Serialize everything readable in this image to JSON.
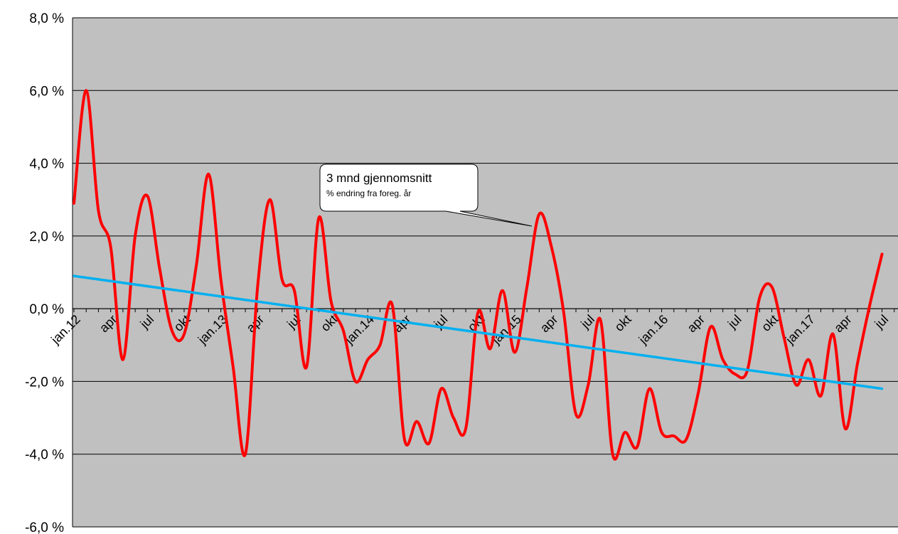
{
  "chart_data": {
    "type": "line",
    "title": "",
    "xlabel": "",
    "ylabel": "",
    "ylim": [
      -6,
      8
    ],
    "y_tick_labels": [
      "8,0 %",
      "6,0 %",
      "4,0 %",
      "2,0 %",
      "0,0 %",
      "-2,0 %",
      "-4,0 %",
      "-6,0 %"
    ],
    "x_tick_labels": [
      "jan.12",
      "apr",
      "jul",
      "okt",
      "jan.13",
      "apr",
      "jul",
      "okt",
      "jan.14",
      "apr",
      "jul",
      "okt",
      "jan.15",
      "apr",
      "jul",
      "okt",
      "jan.16",
      "apr",
      "jul",
      "okt",
      "jan.17",
      "apr",
      "jul"
    ],
    "grid": true,
    "background": "#c0c0c0",
    "series": [
      {
        "color": "#ff0000",
        "x": [
          "2012-01",
          "2012-02",
          "2012-03",
          "2012-04",
          "2012-05",
          "2012-06",
          "2012-07",
          "2012-08",
          "2012-09",
          "2012-10",
          "2012-11",
          "2012-12",
          "2013-01",
          "2013-02",
          "2013-03",
          "2013-04",
          "2013-05",
          "2013-06",
          "2013-07",
          "2013-08",
          "2013-09",
          "2013-10",
          "2013-11",
          "2013-12",
          "2014-01",
          "2014-02",
          "2014-03",
          "2014-04",
          "2014-05",
          "2014-06",
          "2014-07",
          "2014-08",
          "2014-09",
          "2014-10",
          "2014-11",
          "2014-12",
          "2015-01",
          "2015-02",
          "2015-03",
          "2015-04",
          "2015-05",
          "2015-06",
          "2015-07",
          "2015-08",
          "2015-09",
          "2015-10",
          "2015-11",
          "2015-12",
          "2016-01",
          "2016-02",
          "2016-03",
          "2016-04",
          "2016-05",
          "2016-06",
          "2016-07",
          "2016-08",
          "2016-09",
          "2016-10",
          "2016-11",
          "2016-12",
          "2017-01",
          "2017-02",
          "2017-03",
          "2017-04",
          "2017-05",
          "2017-06",
          "2017-07"
        ],
        "values": [
          2.9,
          6.0,
          2.7,
          1.7,
          -1.4,
          2.0,
          3.1,
          1.1,
          -0.6,
          -0.7,
          1.2,
          3.7,
          0.8,
          -1.6,
          -4.0,
          0.6,
          3.0,
          0.8,
          0.5,
          -1.6,
          2.5,
          0.2,
          -0.6,
          -2.0,
          -1.4,
          -1.0,
          0.1,
          -3.6,
          -3.1,
          -3.7,
          -2.2,
          -3.0,
          -3.3,
          -0.1,
          -1.1,
          0.5,
          -1.2,
          0.6,
          2.6,
          1.7,
          -0.1,
          -2.9,
          -2.1,
          -0.3,
          -4.0,
          -3.4,
          -3.8,
          -2.2,
          -3.4,
          -3.5,
          -3.6,
          -2.3,
          -0.5,
          -1.4,
          -1.8,
          -1.7,
          0.3,
          0.6,
          -0.8,
          -2.1,
          -1.4,
          -2.4,
          -0.7,
          -3.3,
          -1.5,
          0.1,
          1.5
        ]
      },
      {
        "color": "#00b0f0",
        "x": [
          "2012-01",
          "2017-07"
        ],
        "values": [
          0.9,
          -2.2
        ]
      }
    ],
    "annotations": [
      {
        "text": "3 mnd gjennomsnitt",
        "subtext": "% endring fra foreg. år",
        "points_to": "2015-03"
      }
    ]
  }
}
